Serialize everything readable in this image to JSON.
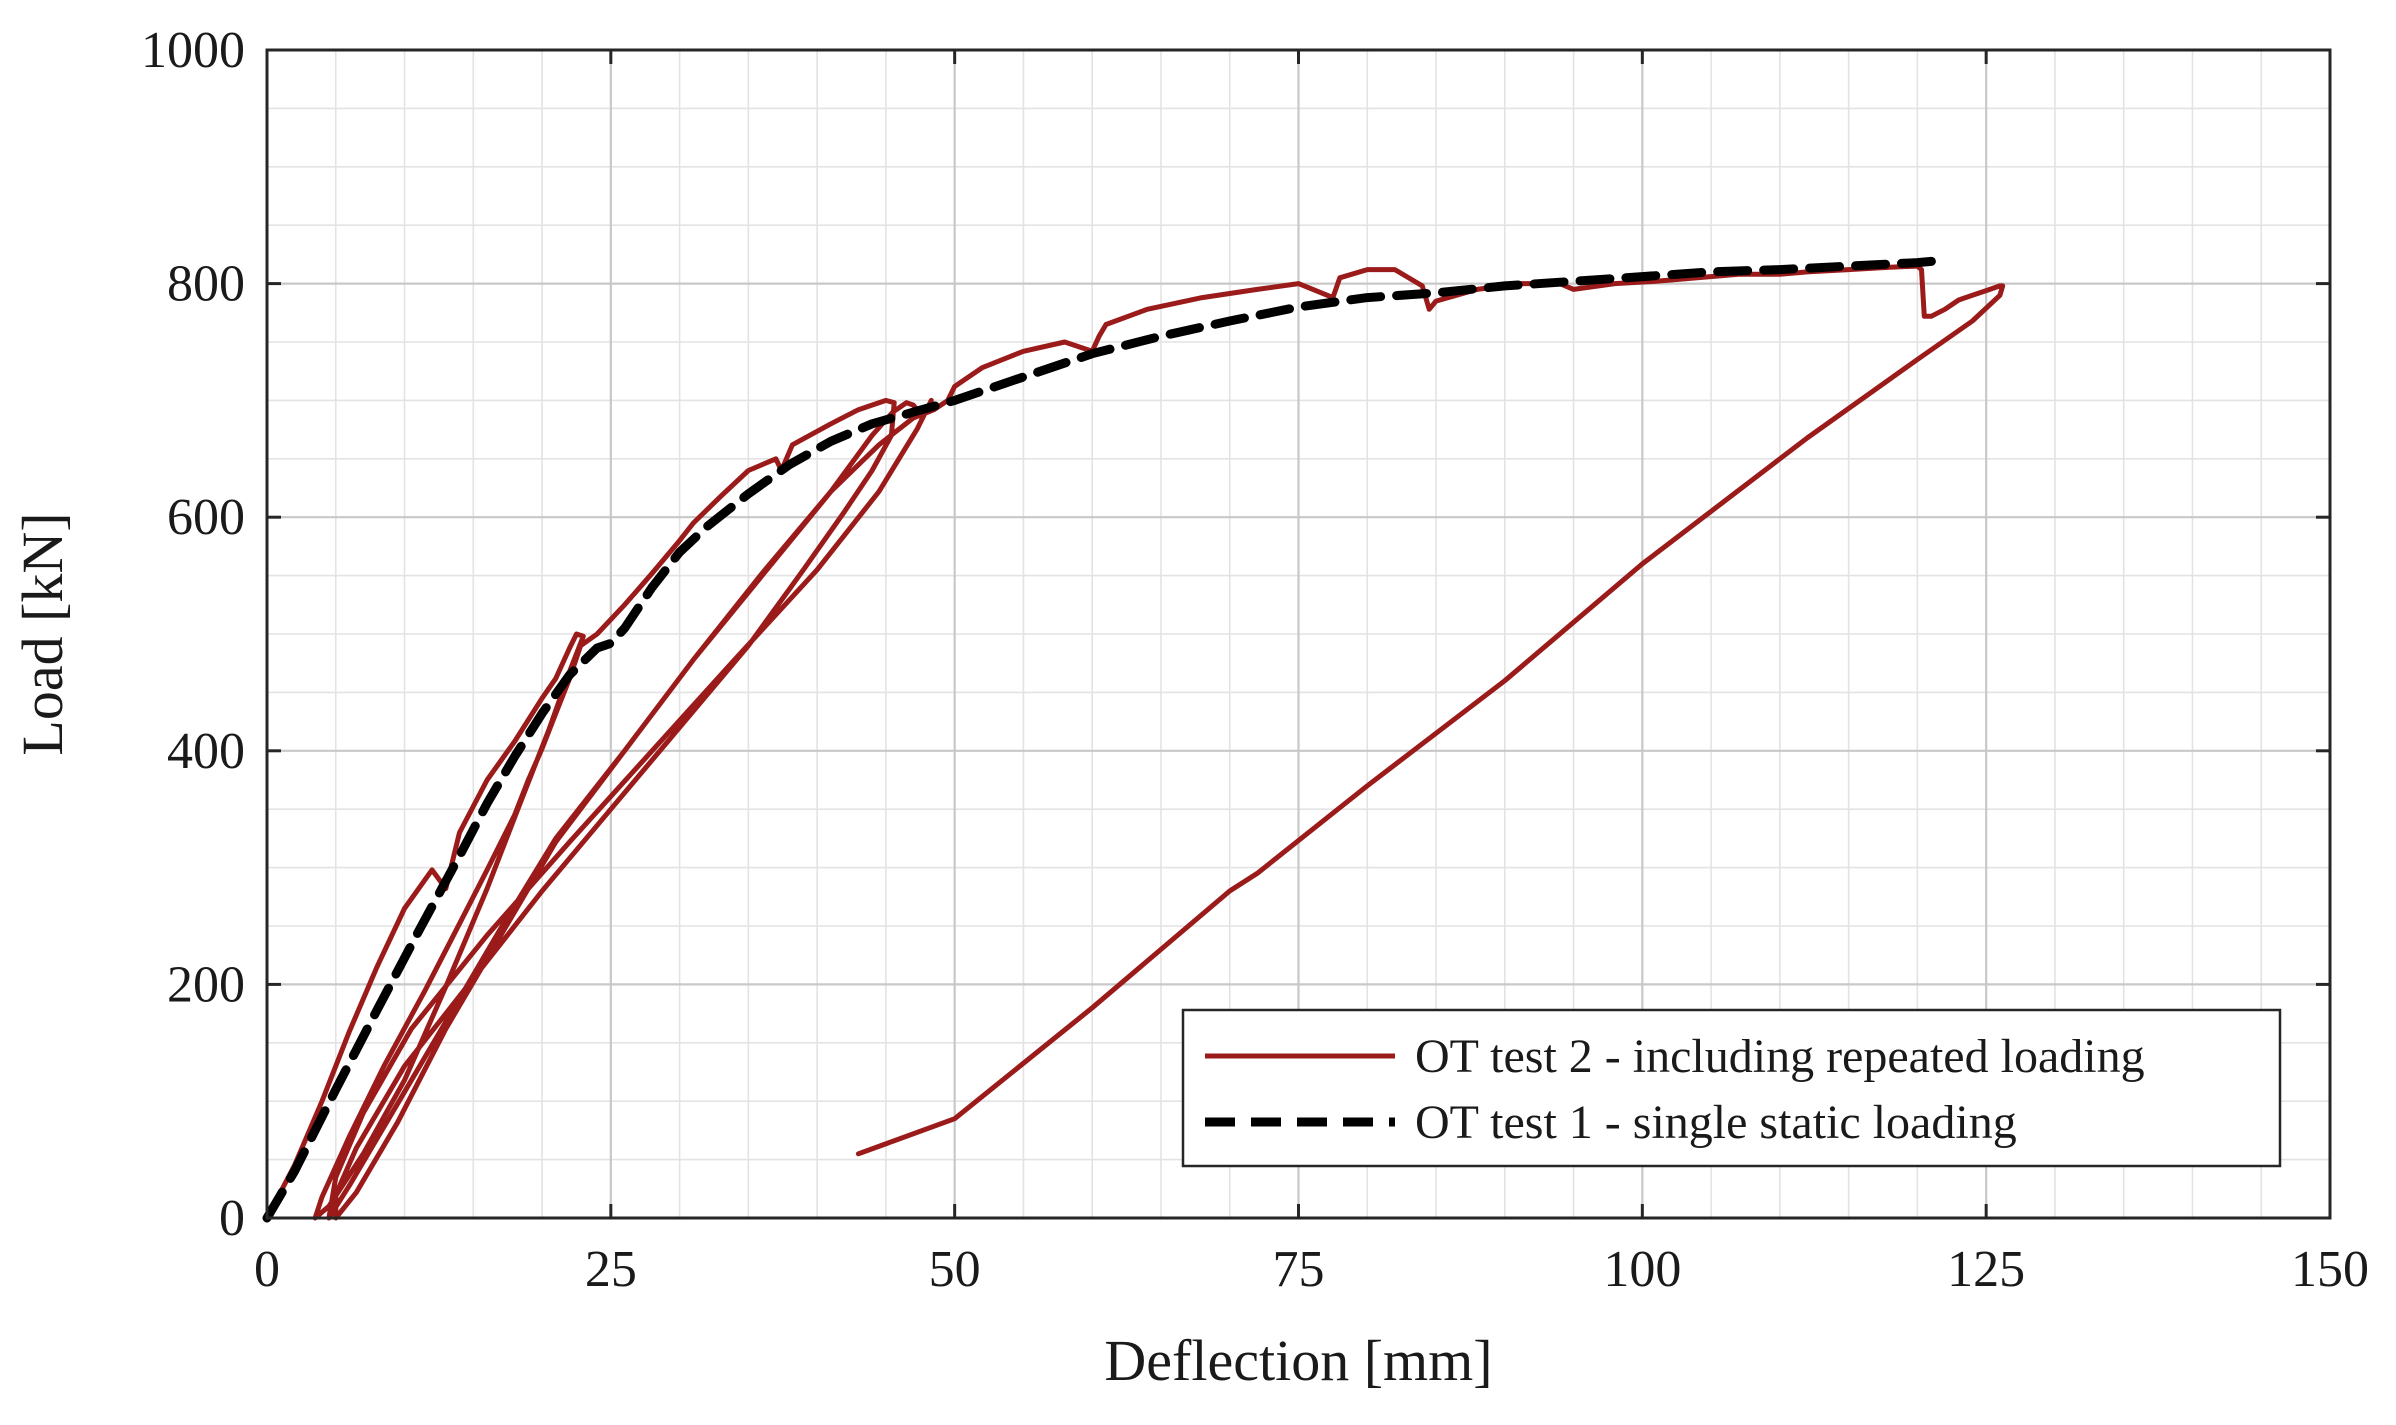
{
  "chart_data": {
    "type": "line",
    "title": "",
    "xlabel": "Deflection [mm]",
    "ylabel": "Load [kN]",
    "xlim": [
      0,
      150
    ],
    "ylim": [
      0,
      1000
    ],
    "xticks": [
      0,
      25,
      50,
      75,
      100,
      125,
      150
    ],
    "yticks": [
      0,
      200,
      400,
      600,
      800,
      1000
    ],
    "x_minor_step": 5,
    "y_minor_step": 50,
    "grid": true,
    "legend_position": "bottom-right",
    "series": [
      {
        "name": "OT test 2 - including repeated loading",
        "color": "#9b1b1b",
        "style": "solid",
        "x": [
          0,
          2,
          4,
          6,
          8,
          10,
          12,
          13,
          14,
          16,
          18,
          20,
          21,
          22,
          22.5,
          23,
          22,
          20.5,
          18.5,
          16,
          13,
          10,
          7,
          4.5,
          3.5,
          4,
          6,
          8.5,
          11.5,
          14,
          16,
          18,
          19,
          20,
          21,
          22,
          22.8,
          24,
          26,
          28,
          30,
          31,
          33,
          35,
          37,
          37.4,
          38.2,
          41,
          43,
          45,
          45.6,
          45.4,
          44,
          42,
          39,
          35,
          30,
          25,
          20,
          15,
          10,
          6.5,
          5,
          5,
          6.5,
          9.5,
          13,
          17,
          21,
          26,
          31,
          36,
          41,
          44,
          45.5,
          46.5,
          47,
          47.5,
          48,
          48.3,
          47.3,
          44.5,
          40,
          34,
          28,
          22,
          16,
          10.5,
          7,
          5,
          4.5,
          6,
          9,
          13,
          17,
          21,
          26,
          31,
          36,
          41,
          44.5,
          47,
          48.5,
          49.5,
          50,
          52,
          55,
          58,
          60,
          60.5,
          61,
          64,
          68,
          72,
          75,
          77.5,
          78,
          80,
          82,
          84,
          84.5,
          85,
          88,
          91,
          94,
          95,
          98,
          101,
          104,
          107,
          110,
          112,
          115,
          118,
          120,
          120.3,
          120.5,
          121,
          122,
          123,
          124,
          125,
          126,
          126.2,
          126,
          124,
          120,
          112,
          100,
          90,
          80,
          72,
          70,
          60,
          50,
          43
        ],
        "y": [
          0,
          45,
          100,
          160,
          215,
          265,
          298,
          282,
          330,
          375,
          408,
          445,
          462,
          488,
          500,
          498,
          468,
          418,
          358,
          282,
          198,
          118,
          55,
          10,
          0,
          18,
          70,
          130,
          195,
          252,
          298,
          345,
          375,
          402,
          432,
          462,
          490,
          500,
          525,
          552,
          580,
          595,
          618,
          640,
          650,
          640,
          662,
          680,
          692,
          700,
          698,
          670,
          640,
          605,
          555,
          490,
          420,
          350,
          280,
          205,
          130,
          60,
          20,
          0,
          22,
          82,
          162,
          242,
          322,
          400,
          478,
          550,
          622,
          670,
          690,
          698,
          696,
          688,
          692,
          700,
          676,
          622,
          555,
          478,
          400,
          322,
          242,
          162,
          90,
          35,
          0,
          28,
          88,
          168,
          248,
          325,
          400,
          478,
          552,
          622,
          662,
          685,
          692,
          700,
          712,
          728,
          742,
          750,
          742,
          755,
          765,
          778,
          788,
          795,
          800,
          788,
          805,
          812,
          812,
          798,
          778,
          785,
          795,
          800,
          800,
          795,
          800,
          802,
          805,
          808,
          808,
          810,
          812,
          814,
          815,
          812,
          772,
          772,
          778,
          786,
          790,
          794,
          798,
          798,
          790,
          768,
          735,
          668,
          560,
          460,
          370,
          295,
          280,
          180,
          85,
          55
        ]
      },
      {
        "name": "OT test 1 - single static loading",
        "color": "#000000",
        "style": "dashed",
        "x": [
          0,
          2,
          5,
          8,
          11,
          14,
          16,
          18,
          20,
          22,
          24,
          25,
          26,
          28,
          30,
          32,
          35,
          38,
          41,
          44,
          47,
          50,
          55,
          60,
          65,
          70,
          75,
          80,
          85,
          90,
          95,
          100,
          105,
          110,
          115,
          120,
          122
        ],
        "y": [
          0,
          40,
          110,
          178,
          245,
          310,
          355,
          395,
          432,
          465,
          488,
          492,
          505,
          540,
          570,
          592,
          620,
          645,
          665,
          680,
          690,
          700,
          720,
          740,
          755,
          768,
          780,
          788,
          792,
          798,
          802,
          806,
          810,
          812,
          815,
          818,
          820
        ]
      }
    ]
  }
}
